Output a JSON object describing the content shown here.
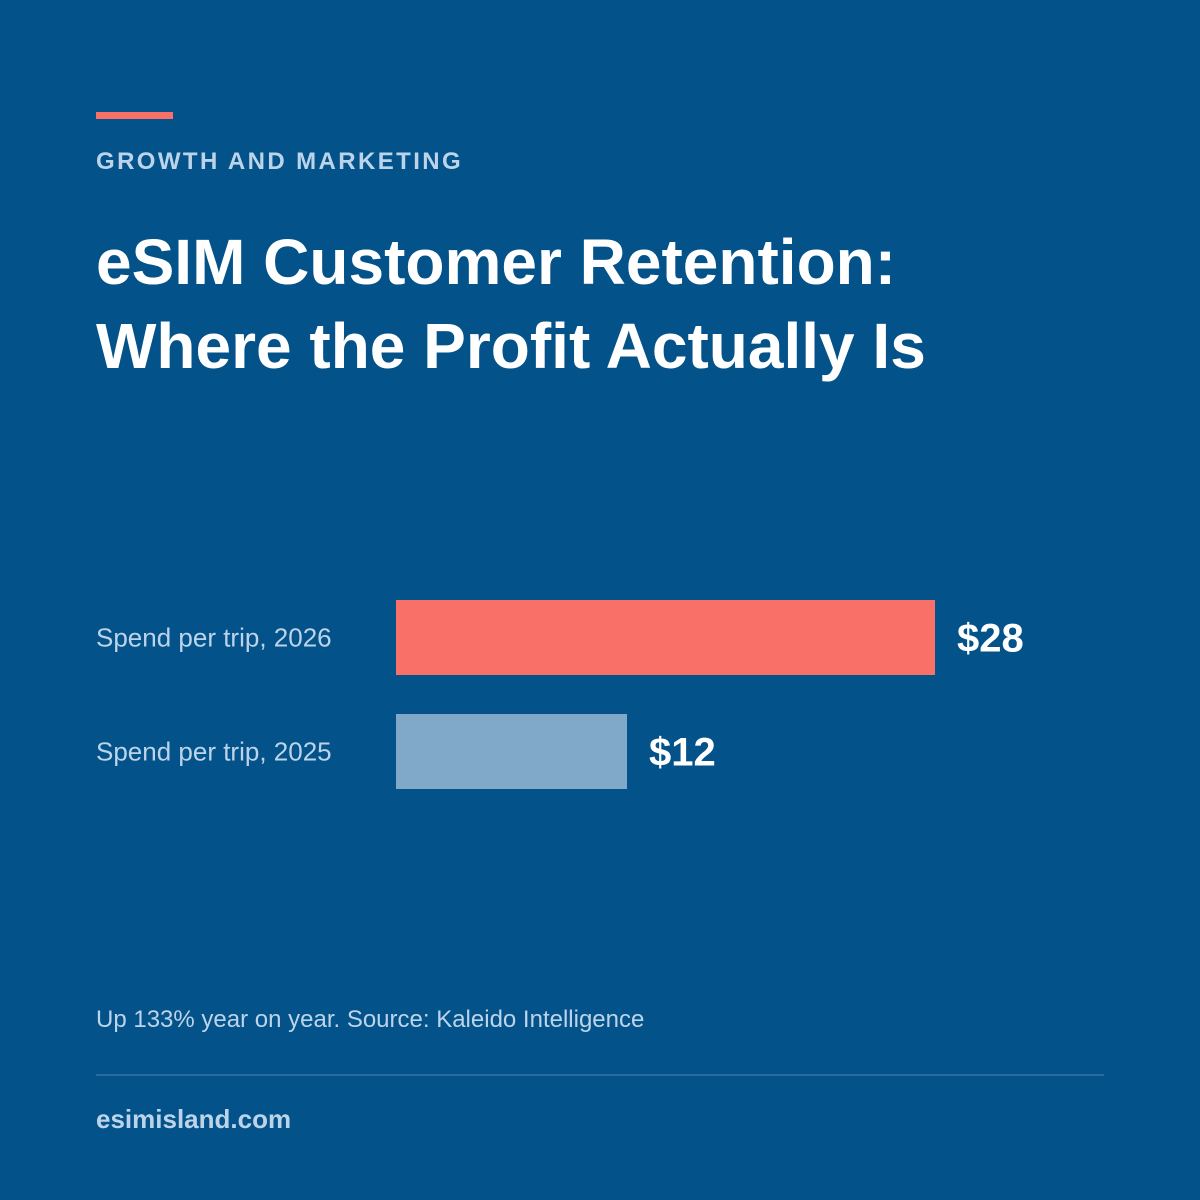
{
  "header": {
    "category": "GROWTH AND MARKETING",
    "title_line1": "eSIM Customer Retention:",
    "title_line2": "Where the Profit Actually Is"
  },
  "colors": {
    "background": "#04528a",
    "accent": "#f87068",
    "secondary_bar": "#80a8c8",
    "muted_text": "#bcd4ea"
  },
  "chart_data": {
    "type": "bar",
    "orientation": "horizontal",
    "categories": [
      "Spend per trip, 2026",
      "Spend per trip, 2025"
    ],
    "values": [
      28,
      12
    ],
    "value_labels": [
      "$28",
      "$12"
    ],
    "bar_colors": [
      "#f87068",
      "#80a8c8"
    ],
    "title": "",
    "xlabel": "",
    "ylabel": "",
    "unit": "$",
    "xlim": [
      0,
      28
    ],
    "grid": false
  },
  "footer": {
    "note": "Up 133% year on year. Source: Kaleido Intelligence",
    "site": "esimisland.com"
  }
}
